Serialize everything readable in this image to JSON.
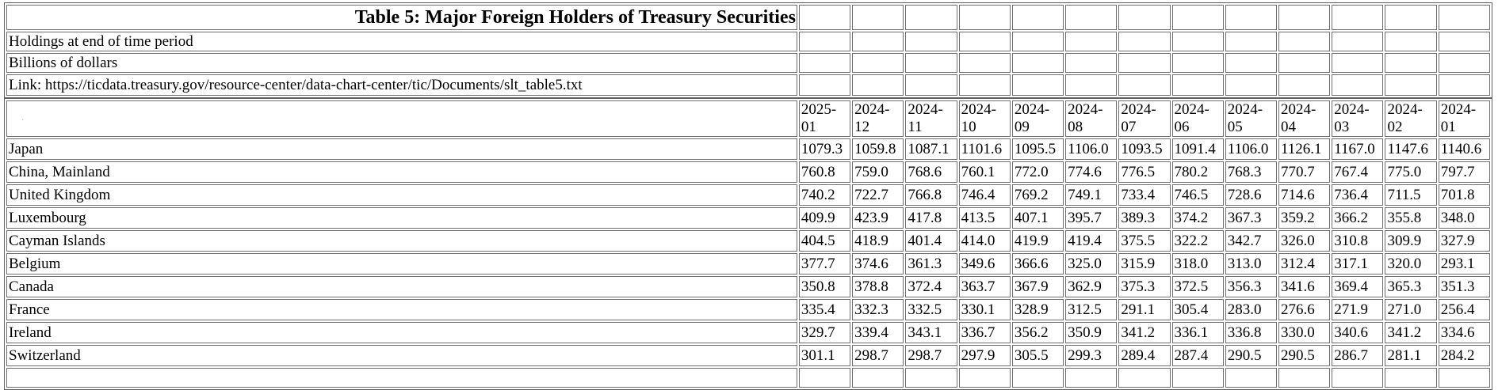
{
  "page": {
    "title": "Table 5: Major Foreign Holders of Treasury Securities",
    "info_rows": [
      "Holdings at end of time period",
      "Billions of dollars",
      "Link: https://ticdata.treasury.gov/resource-center/data-chart-center/tic/Documents/slt_table5.txt"
    ],
    "corner_mark": "."
  },
  "chart_data": {
    "type": "table",
    "title": "Table 5: Major Foreign Holders of Treasury Securities",
    "units": "Billions of dollars",
    "columns": [
      "2025-01",
      "2024-12",
      "2024-11",
      "2024-10",
      "2024-09",
      "2024-08",
      "2024-07",
      "2024-06",
      "2024-05",
      "2024-04",
      "2024-03",
      "2024-02",
      "2024-01"
    ],
    "rows": [
      {
        "label": "Japan",
        "values": [
          "1079.3",
          "1059.8",
          "1087.1",
          "1101.6",
          "1095.5",
          "1106.0",
          "1093.5",
          "1091.4",
          "1106.0",
          "1126.1",
          "1167.0",
          "1147.6",
          "1140.6"
        ]
      },
      {
        "label": "China, Mainland",
        "values": [
          "760.8",
          "759.0",
          "768.6",
          "760.1",
          "772.0",
          "774.6",
          "776.5",
          "780.2",
          "768.3",
          "770.7",
          "767.4",
          "775.0",
          "797.7"
        ]
      },
      {
        "label": "United Kingdom",
        "values": [
          "740.2",
          "722.7",
          "766.8",
          "746.4",
          "769.2",
          "749.1",
          "733.4",
          "746.5",
          "728.6",
          "714.6",
          "736.4",
          "711.5",
          "701.8"
        ]
      },
      {
        "label": "Luxembourg",
        "values": [
          "409.9",
          "423.9",
          "417.8",
          "413.5",
          "407.1",
          "395.7",
          "389.3",
          "374.2",
          "367.3",
          "359.2",
          "366.2",
          "355.8",
          "348.0"
        ]
      },
      {
        "label": "Cayman Islands",
        "values": [
          "404.5",
          "418.9",
          "401.4",
          "414.0",
          "419.9",
          "419.4",
          "375.5",
          "322.2",
          "342.7",
          "326.0",
          "310.8",
          "309.9",
          "327.9"
        ]
      },
      {
        "label": "Belgium",
        "values": [
          "377.7",
          "374.6",
          "361.3",
          "349.6",
          "366.6",
          "325.0",
          "315.9",
          "318.0",
          "313.0",
          "312.4",
          "317.1",
          "320.0",
          "293.1"
        ]
      },
      {
        "label": "Canada",
        "values": [
          "350.8",
          "378.8",
          "372.4",
          "363.7",
          "367.9",
          "362.9",
          "375.3",
          "372.5",
          "356.3",
          "341.6",
          "369.4",
          "365.3",
          "351.3"
        ]
      },
      {
        "label": "France",
        "values": [
          "335.4",
          "332.3",
          "332.5",
          "330.1",
          "328.9",
          "312.5",
          "291.1",
          "305.4",
          "283.0",
          "276.6",
          "271.9",
          "271.0",
          "256.4"
        ]
      },
      {
        "label": "Ireland",
        "values": [
          "329.7",
          "339.4",
          "343.1",
          "336.7",
          "356.2",
          "350.9",
          "341.2",
          "336.1",
          "336.8",
          "330.0",
          "340.6",
          "341.2",
          "334.6"
        ]
      },
      {
        "label": "Switzerland",
        "values": [
          "301.1",
          "298.7",
          "298.7",
          "297.9",
          "305.5",
          "299.3",
          "289.4",
          "287.4",
          "290.5",
          "290.5",
          "286.7",
          "281.1",
          "284.2"
        ]
      }
    ]
  }
}
